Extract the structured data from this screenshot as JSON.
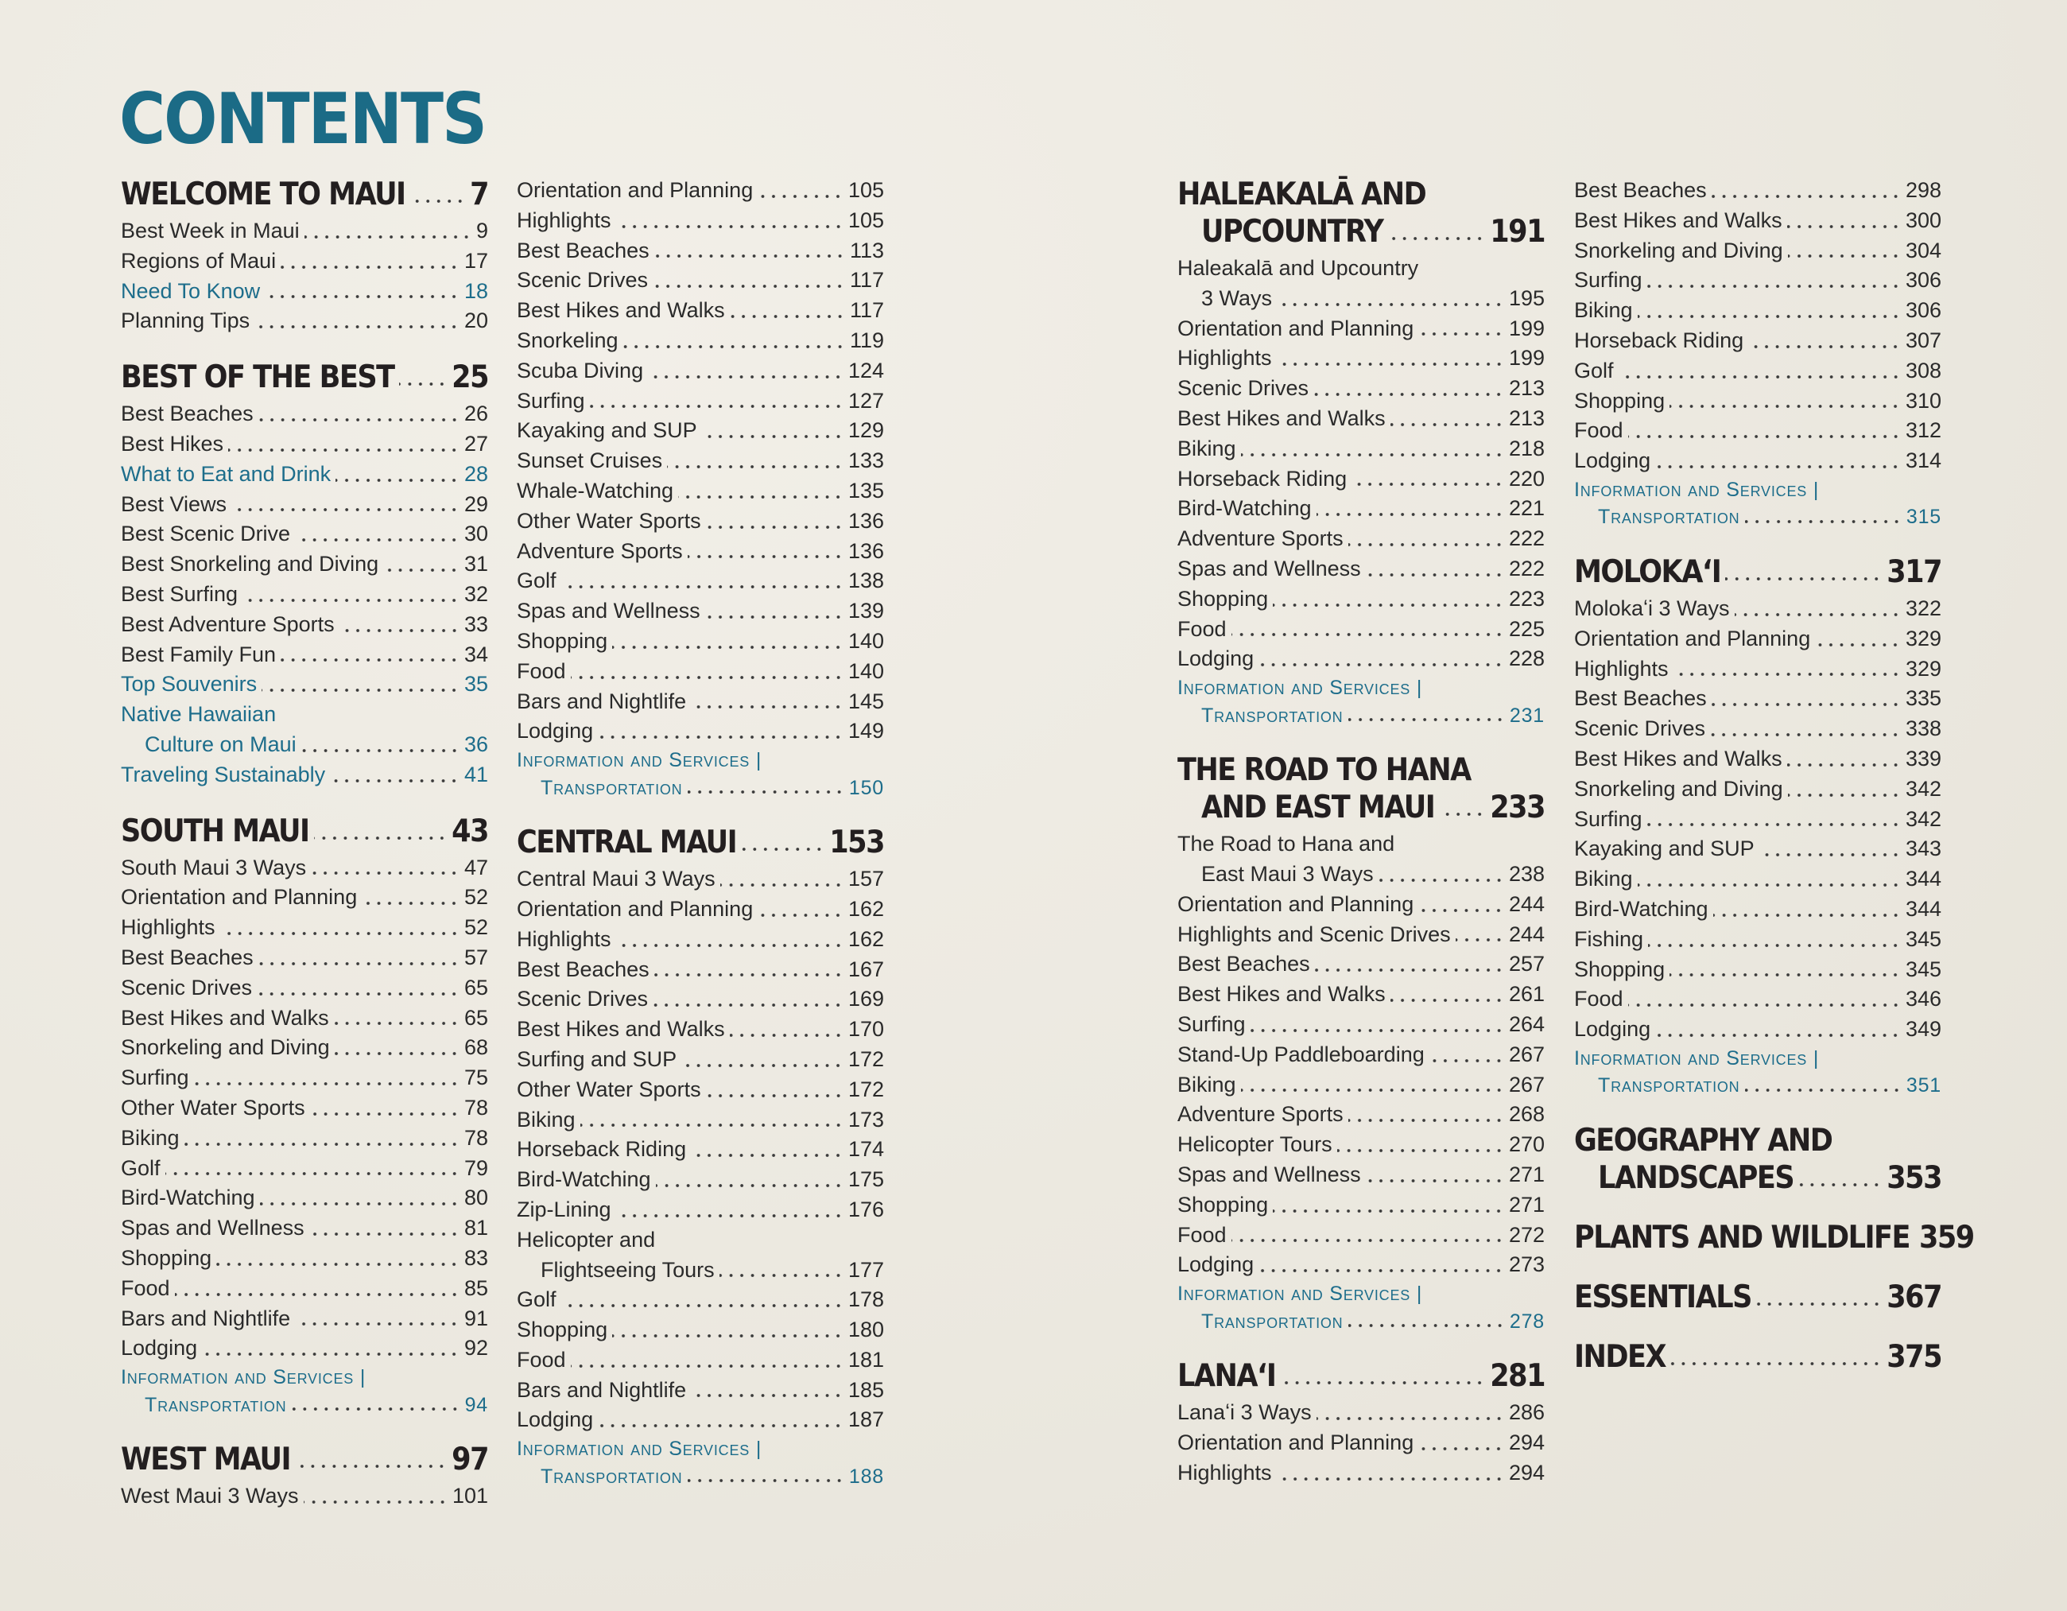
{
  "title": "CONTENTS",
  "columns": [
    {
      "sections": [
        {
          "title": "WELCOME TO MAUI",
          "page": "7",
          "entries": [
            {
              "label": "Best Week in Maui",
              "page": "9"
            },
            {
              "label": "Regions of Maui",
              "page": "17"
            },
            {
              "label": "Need To Know",
              "page": "18",
              "color": "#1d6d8b"
            },
            {
              "label": "Planning Tips",
              "page": "20"
            }
          ]
        },
        {
          "title": "BEST OF THE BEST",
          "page": "25",
          "entries": [
            {
              "label": "Best Beaches",
              "page": "26"
            },
            {
              "label": "Best Hikes",
              "page": "27"
            },
            {
              "label": "What to Eat and Drink",
              "page": "28",
              "color": "#1d6d8b"
            },
            {
              "label": "Best Views",
              "page": "29"
            },
            {
              "label": "Best Scenic Drive",
              "page": "30"
            },
            {
              "label": "Best Snorkeling and Diving",
              "page": "31"
            },
            {
              "label": "Best Surfing",
              "page": "32"
            },
            {
              "label": "Best Adventure Sports",
              "page": "33"
            },
            {
              "label": "Best Family Fun",
              "page": "34"
            },
            {
              "label": "Top Souvenirs",
              "page": "35",
              "color": "#1d6d8b"
            },
            {
              "label": [
                "Native Hawaiian",
                "Culture on Maui"
              ],
              "page": "36",
              "color": "#1d6d8b"
            },
            {
              "label": "Traveling Sustainably",
              "page": "41",
              "color": "#1d6d8b"
            }
          ]
        },
        {
          "title": "SOUTH MAUI",
          "page": "43",
          "entries": [
            {
              "label": "South Maui 3 Ways",
              "page": "47"
            },
            {
              "label": "Orientation and Planning",
              "page": "52"
            },
            {
              "label": "Highlights",
              "page": "52"
            },
            {
              "label": "Best Beaches",
              "page": "57"
            },
            {
              "label": "Scenic Drives",
              "page": "65"
            },
            {
              "label": "Best Hikes and Walks",
              "page": "65"
            },
            {
              "label": "Snorkeling and Diving",
              "page": "68"
            },
            {
              "label": "Surfing",
              "page": "75"
            },
            {
              "label": "Other Water Sports",
              "page": "78"
            },
            {
              "label": "Biking",
              "page": "78"
            },
            {
              "label": "Golf",
              "page": "79"
            },
            {
              "label": "Bird-Watching",
              "page": "80"
            },
            {
              "label": "Spas and Wellness",
              "page": "81"
            },
            {
              "label": "Shopping",
              "page": "83"
            },
            {
              "label": "Food",
              "page": "85"
            },
            {
              "label": "Bars and Nightlife",
              "page": "91"
            },
            {
              "label": "Lodging",
              "page": "92"
            },
            {
              "label": [
                "Information and Services |",
                "Transportation"
              ],
              "page": "94",
              "color": "#1d6d8b",
              "small_caps": true
            }
          ]
        },
        {
          "title": "WEST MAUI",
          "page": "97",
          "entries": [
            {
              "label": "West Maui 3 Ways",
              "page": "101"
            }
          ]
        }
      ]
    },
    {
      "sections": [
        {
          "entries": [
            {
              "label": "Orientation and Planning",
              "page": "105"
            },
            {
              "label": "Highlights",
              "page": "105"
            },
            {
              "label": "Best Beaches",
              "page": "113"
            },
            {
              "label": "Scenic Drives",
              "page": "117"
            },
            {
              "label": "Best Hikes and Walks",
              "page": "117"
            },
            {
              "label": "Snorkeling",
              "page": "119"
            },
            {
              "label": "Scuba Diving",
              "page": "124"
            },
            {
              "label": "Surfing",
              "page": "127"
            },
            {
              "label": "Kayaking and SUP",
              "page": "129"
            },
            {
              "label": "Sunset Cruises",
              "page": "133"
            },
            {
              "label": "Whale-Watching",
              "page": "135"
            },
            {
              "label": "Other Water Sports",
              "page": "136"
            },
            {
              "label": "Adventure Sports",
              "page": "136"
            },
            {
              "label": "Golf",
              "page": "138"
            },
            {
              "label": "Spas and Wellness",
              "page": "139"
            },
            {
              "label": "Shopping",
              "page": "140"
            },
            {
              "label": "Food",
              "page": "140"
            },
            {
              "label": "Bars and Nightlife",
              "page": "145"
            },
            {
              "label": "Lodging",
              "page": "149"
            },
            {
              "label": [
                "Information and Services |",
                "Transportation"
              ],
              "page": "150",
              "color": "#1d6d8b",
              "small_caps": true
            }
          ]
        },
        {
          "title": "CENTRAL MAUI",
          "page": "153",
          "entries": [
            {
              "label": "Central Maui 3 Ways",
              "page": "157"
            },
            {
              "label": "Orientation and Planning",
              "page": "162"
            },
            {
              "label": "Highlights",
              "page": "162"
            },
            {
              "label": "Best Beaches",
              "page": "167"
            },
            {
              "label": "Scenic Drives",
              "page": "169"
            },
            {
              "label": "Best Hikes and Walks",
              "page": "170"
            },
            {
              "label": "Surfing and SUP",
              "page": "172"
            },
            {
              "label": "Other Water Sports",
              "page": "172"
            },
            {
              "label": "Biking",
              "page": "173"
            },
            {
              "label": "Horseback Riding",
              "page": "174"
            },
            {
              "label": "Bird-Watching",
              "page": "175"
            },
            {
              "label": "Zip-Lining",
              "page": "176"
            },
            {
              "label": [
                "Helicopter and",
                "Flightseeing Tours"
              ],
              "page": "177"
            },
            {
              "label": "Golf",
              "page": "178"
            },
            {
              "label": "Shopping",
              "page": "180"
            },
            {
              "label": "Food",
              "page": "181"
            },
            {
              "label": "Bars and Nightlife",
              "page": "185"
            },
            {
              "label": "Lodging",
              "page": "187"
            },
            {
              "label": [
                "Information and Services |",
                "Transportation"
              ],
              "page": "188",
              "color": "#1d6d8b",
              "small_caps": true
            }
          ]
        }
      ]
    },
    {
      "sections": [
        {
          "title": [
            "HALEAKALĀ AND",
            "UPCOUNTRY"
          ],
          "page": "191",
          "entries": [
            {
              "label": [
                "Haleakalā and Upcountry",
                "3 Ways"
              ],
              "page": "195"
            },
            {
              "label": "Orientation and Planning",
              "page": "199"
            },
            {
              "label": "Highlights",
              "page": "199"
            },
            {
              "label": "Scenic Drives",
              "page": "213"
            },
            {
              "label": "Best Hikes and Walks",
              "page": "213"
            },
            {
              "label": "Biking",
              "page": "218"
            },
            {
              "label": "Horseback Riding",
              "page": "220"
            },
            {
              "label": "Bird-Watching",
              "page": "221"
            },
            {
              "label": "Adventure Sports",
              "page": "222"
            },
            {
              "label": "Spas and Wellness",
              "page": "222"
            },
            {
              "label": "Shopping",
              "page": "223"
            },
            {
              "label": "Food",
              "page": "225"
            },
            {
              "label": "Lodging",
              "page": "228"
            },
            {
              "label": [
                "Information and Services |",
                "Transportation"
              ],
              "page": "231",
              "color": "#1d6d8b",
              "small_caps": true
            }
          ]
        },
        {
          "title": [
            "THE ROAD TO HANA",
            "AND EAST MAUI"
          ],
          "page": "233",
          "entries": [
            {
              "label": [
                "The Road to Hana and",
                "East Maui 3 Ways"
              ],
              "page": "238"
            },
            {
              "label": "Orientation and Planning",
              "page": "244"
            },
            {
              "label": "Highlights and Scenic Drives",
              "page": "244"
            },
            {
              "label": "Best Beaches",
              "page": "257"
            },
            {
              "label": "Best Hikes and Walks",
              "page": "261"
            },
            {
              "label": "Surfing",
              "page": "264"
            },
            {
              "label": "Stand-Up Paddleboarding",
              "page": "267"
            },
            {
              "label": "Biking",
              "page": "267"
            },
            {
              "label": "Adventure Sports",
              "page": "268"
            },
            {
              "label": "Helicopter Tours",
              "page": "270"
            },
            {
              "label": "Spas and Wellness",
              "page": "271"
            },
            {
              "label": "Shopping",
              "page": "271"
            },
            {
              "label": "Food",
              "page": "272"
            },
            {
              "label": "Lodging",
              "page": "273"
            },
            {
              "label": [
                "Information and Services |",
                "Transportation"
              ],
              "page": "278",
              "color": "#1d6d8b",
              "small_caps": true
            }
          ]
        },
        {
          "title": "LANAʻI",
          "page": "281",
          "entries": [
            {
              "label": "Lanaʻi 3 Ways",
              "page": "286"
            },
            {
              "label": "Orientation and Planning",
              "page": "294"
            },
            {
              "label": "Highlights",
              "page": "294"
            }
          ]
        }
      ]
    },
    {
      "sections": [
        {
          "entries": [
            {
              "label": "Best Beaches",
              "page": "298"
            },
            {
              "label": "Best Hikes and Walks",
              "page": "300"
            },
            {
              "label": "Snorkeling and Diving",
              "page": "304"
            },
            {
              "label": "Surfing",
              "page": "306"
            },
            {
              "label": "Biking",
              "page": "306"
            },
            {
              "label": "Horseback Riding",
              "page": "307"
            },
            {
              "label": "Golf",
              "page": "308"
            },
            {
              "label": "Shopping",
              "page": "310"
            },
            {
              "label": "Food",
              "page": "312"
            },
            {
              "label": "Lodging",
              "page": "314"
            },
            {
              "label": [
                "Information and Services |",
                "Transportation"
              ],
              "page": "315",
              "color": "#1d6d8b",
              "small_caps": true
            }
          ]
        },
        {
          "title": "MOLOKAʻI",
          "page": "317",
          "entries": [
            {
              "label": "Molokaʻi 3 Ways",
              "page": "322"
            },
            {
              "label": "Orientation and Planning",
              "page": "329"
            },
            {
              "label": "Highlights",
              "page": "329"
            },
            {
              "label": "Best Beaches",
              "page": "335"
            },
            {
              "label": "Scenic Drives",
              "page": "338"
            },
            {
              "label": "Best Hikes and Walks",
              "page": "339"
            },
            {
              "label": "Snorkeling and Diving",
              "page": "342"
            },
            {
              "label": "Surfing",
              "page": "342"
            },
            {
              "label": "Kayaking and SUP",
              "page": "343"
            },
            {
              "label": "Biking",
              "page": "344"
            },
            {
              "label": "Bird-Watching",
              "page": "344"
            },
            {
              "label": "Fishing",
              "page": "345"
            },
            {
              "label": "Shopping",
              "page": "345"
            },
            {
              "label": "Food",
              "page": "346"
            },
            {
              "label": "Lodging",
              "page": "349"
            },
            {
              "label": [
                "Information and Services |",
                "Transportation"
              ],
              "page": "351",
              "color": "#1d6d8b",
              "small_caps": true
            }
          ]
        },
        {
          "title": [
            "GEOGRAPHY AND",
            "LANDSCAPES"
          ],
          "page": "353",
          "entries": []
        },
        {
          "title": "PLANTS AND WILDLIFE",
          "page": "359",
          "entries": []
        },
        {
          "title": "ESSENTIALS",
          "page": "367",
          "entries": []
        },
        {
          "title": "INDEX",
          "page": "375",
          "entries": []
        }
      ]
    }
  ]
}
